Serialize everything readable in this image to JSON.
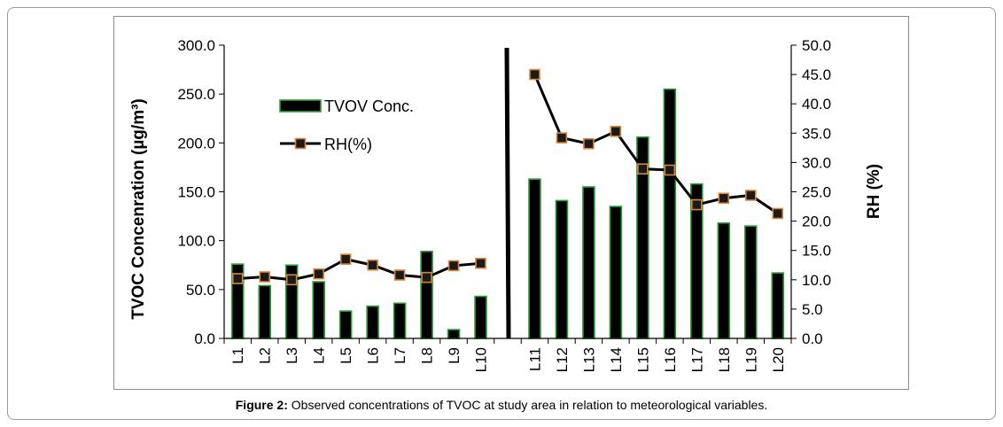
{
  "caption": {
    "label": "Figure 2:",
    "text": "Observed concentrations of TVOC at study area in relation to meteorological variables."
  },
  "chart_data": {
    "type": "bar",
    "categories": [
      "L1",
      "L2",
      "L3",
      "L4",
      "L5",
      "L6",
      "L7",
      "L8",
      "L9",
      "L10",
      "",
      "L11",
      "L12",
      "L13",
      "L14",
      "L15",
      "L16",
      "L17",
      "L18",
      "L19",
      "L20"
    ],
    "series": [
      {
        "name": "TVOV Conc.",
        "type": "bar",
        "axis": "left",
        "values": [
          76,
          54,
          75,
          58,
          28,
          33,
          36,
          89,
          9,
          43,
          null,
          163,
          141,
          155,
          135,
          206,
          255,
          158,
          118,
          115,
          67
        ]
      },
      {
        "name": "RH(%)",
        "type": "line",
        "axis": "right",
        "values": [
          10.2,
          10.5,
          10.0,
          11.0,
          13.5,
          12.5,
          10.8,
          10.4,
          12.4,
          12.8,
          null,
          45.0,
          34.2,
          33.2,
          35.3,
          28.9,
          28.7,
          22.8,
          23.9,
          24.4,
          21.3
        ]
      }
    ],
    "ylabel": "TVOC Concenration (µg/m³)",
    "y2label": "RH (%)",
    "ylim": [
      0,
      300
    ],
    "y2lim": [
      0,
      50
    ],
    "yticks": [
      "0.0",
      "50.0",
      "100.0",
      "150.0",
      "200.0",
      "250.0",
      "300.0"
    ],
    "y2ticks": [
      "0.0",
      "5.0",
      "10.0",
      "15.0",
      "20.0",
      "25.0",
      "30.0",
      "35.0",
      "40.0",
      "45.0",
      "50.0"
    ],
    "legend_position": "top-left",
    "grid": false,
    "colors": {
      "bar_fill": "#000000",
      "bar_border": "#2e9e3a",
      "line": "#000000",
      "marker_fill": "#1a1a1a",
      "marker_border": "#d9853b"
    }
  }
}
